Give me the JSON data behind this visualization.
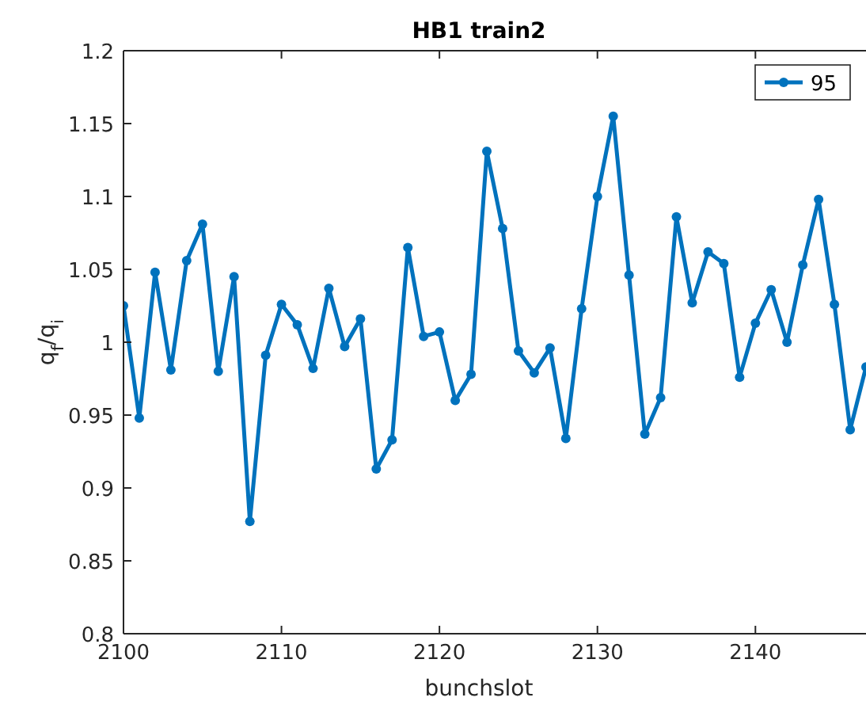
{
  "chart_data": {
    "type": "line",
    "title": "HB1 train2",
    "xlabel": "bunchslot",
    "ylabel": "q$_{f}$/q$_{i}$",
    "x": [
      2100,
      2101,
      2102,
      2103,
      2104,
      2105,
      2106,
      2107,
      2108,
      2109,
      2110,
      2111,
      2112,
      2113,
      2114,
      2115,
      2116,
      2117,
      2118,
      2119,
      2120,
      2121,
      2122,
      2123,
      2124,
      2125,
      2126,
      2127,
      2128,
      2129,
      2130,
      2131,
      2132,
      2133,
      2134,
      2135,
      2136,
      2137,
      2138,
      2139,
      2140,
      2141,
      2142,
      2143,
      2144,
      2145,
      2146,
      2147
    ],
    "series": [
      {
        "name": "95",
        "color": "#0072bd",
        "values": [
          1.025,
          0.948,
          1.048,
          0.981,
          1.056,
          1.081,
          0.98,
          1.045,
          0.877,
          0.991,
          1.026,
          1.012,
          0.982,
          1.037,
          0.997,
          1.016,
          0.913,
          0.933,
          1.065,
          1.004,
          1.007,
          0.96,
          0.978,
          1.131,
          1.078,
          0.994,
          0.979,
          0.996,
          0.934,
          1.023,
          1.1,
          1.155,
          1.046,
          0.937,
          0.962,
          1.086,
          1.027,
          1.062,
          1.054,
          0.976,
          1.013,
          1.036,
          1.0,
          1.053,
          1.098,
          1.026,
          0.94,
          0.983
        ]
      }
    ],
    "xlim": [
      2100,
      2147
    ],
    "xticks": [
      2100,
      2110,
      2120,
      2130,
      2140
    ],
    "ylim": [
      0.8,
      1.2
    ],
    "yticks": [
      0.8,
      0.85,
      0.9,
      0.95,
      1,
      1.05,
      1.1,
      1.15,
      1.2
    ],
    "legend": "top right",
    "marker": "circle",
    "line_style": "solid",
    "grid": false
  }
}
